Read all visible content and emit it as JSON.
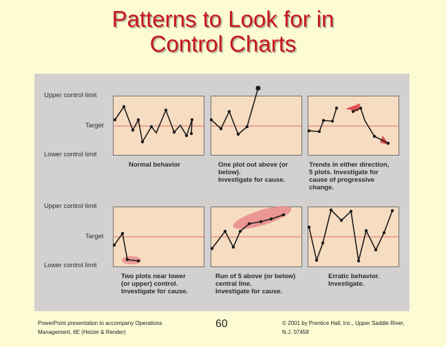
{
  "title_line1": "Patterns to Look for in",
  "title_line2": "Control Charts",
  "labels": {
    "ucl": "Upper control limit",
    "target": "Target",
    "lcl": "Lower control limit"
  },
  "captions": {
    "normal": [
      "Normal behavior"
    ],
    "one_out": [
      "One plot out above (or",
      "below).",
      "Investigate for cause."
    ],
    "trends": [
      "Trends in either direction,",
      "5 plots. Investigate for",
      "cause of progressive",
      "change."
    ],
    "two_near": [
      "Two plots near lower",
      "(or upper) control.",
      "Investigate for cause."
    ],
    "run_five": [
      "Run of 5 above (or below)",
      "central line.",
      "Investigate for cause."
    ],
    "erratic": [
      "Erratic behavior.",
      "Investigate."
    ]
  },
  "footer": {
    "left_line1": "PowerPoint presentation to accompany Operations",
    "left_line2": "Management, 6E (Heizer & Render)",
    "page_number": "60",
    "right_line1": "© 2001 by Prentice Hall, Inc., Upper Saddle River,",
    "right_line2": "N.J. 07458"
  },
  "colors": {
    "title": "#c8141e",
    "background": "#fdfbd4",
    "chart_fill": "#f6dcc0",
    "target_line": "#e06a6a",
    "highlight": "#e88a8a"
  }
}
